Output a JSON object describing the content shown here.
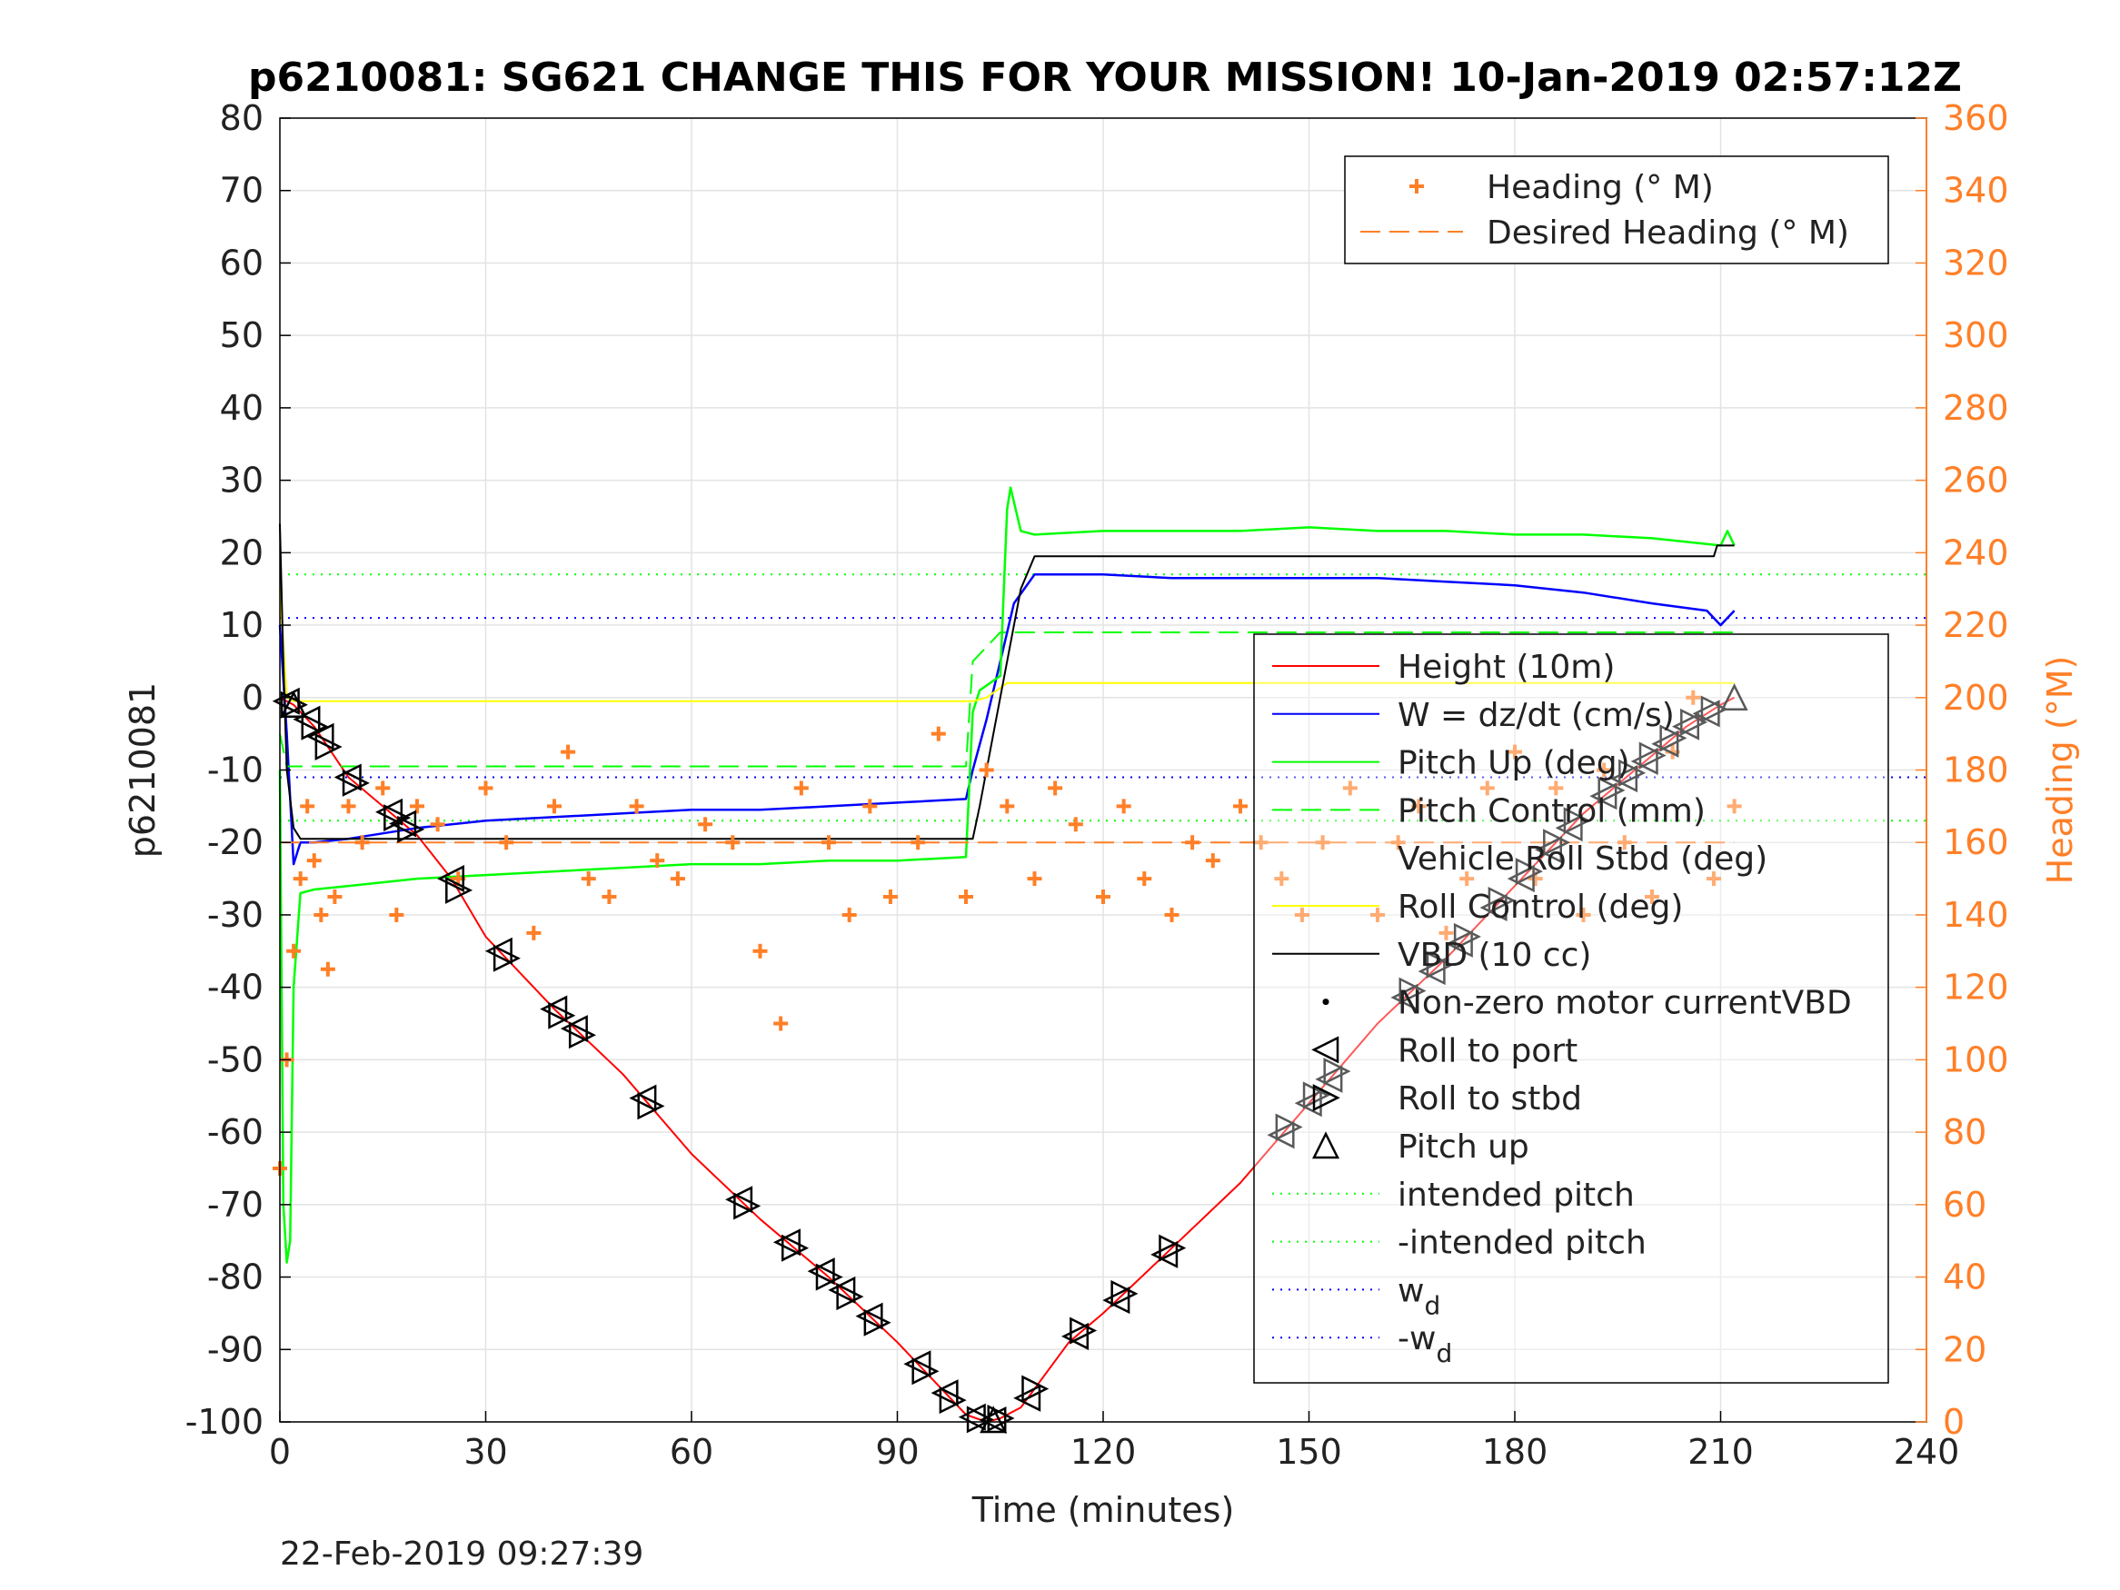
{
  "chart_data": {
    "type": "line",
    "title": "p6210081: SG621 CHANGE THIS FOR YOUR MISSION! 10-Jan-2019 02:57:12Z",
    "xlabel": "Time (minutes)",
    "ylabel_left": "p6210081",
    "ylabel_right": "Heading (°M)",
    "footer": "22-Feb-2019 09:27:39",
    "xlim": [
      0,
      240
    ],
    "ylim_left": [
      -100,
      80
    ],
    "ylim_right": [
      0,
      360
    ],
    "grid": true,
    "x_ticks": [
      "0",
      "30",
      "60",
      "90",
      "120",
      "150",
      "180",
      "210",
      "240"
    ],
    "y_ticks_left": [
      "80",
      "70",
      "60",
      "50",
      "40",
      "30",
      "20",
      "10",
      "0",
      "-10",
      "-20",
      "-30",
      "-40",
      "-50",
      "-60",
      "-70",
      "-80",
      "-90",
      "-100"
    ],
    "y_ticks_right": [
      "360",
      "340",
      "320",
      "300",
      "280",
      "260",
      "240",
      "220",
      "200",
      "180",
      "160",
      "140",
      "120",
      "100",
      "80",
      "60",
      "40",
      "20",
      "0"
    ],
    "colors": {
      "height": "#ff0000",
      "w": "#0000ff",
      "pitch": "#00ff00",
      "roll": "#ffff00",
      "vbd": "#000000",
      "heading": "#ff7f27",
      "axis_right": "#ff7f27"
    },
    "legend_top": {
      "placement": "top-right",
      "entries": [
        "Heading (° M)",
        "Desired Heading (° M)"
      ]
    },
    "legend_main": {
      "placement": "right",
      "entries": [
        "Height (10m)",
        "W = dz/dt (cm/s)",
        "Pitch Up (deg)",
        "Pitch Control (mm)",
        "Vehicle Roll Stbd (deg)",
        "Roll Control (deg)",
        "VBD (10 cc)",
        "Non-zero motor currentVBD",
        "Roll to port",
        "Roll to stbd",
        "Pitch up",
        "intended pitch",
        "-intended pitch",
        "w",
        "-w"
      ],
      "subscript": "d"
    },
    "series": [
      {
        "name": "Height (10m)",
        "axis": "left",
        "x": [
          0,
          2,
          5,
          10,
          15,
          20,
          25,
          30,
          40,
          50,
          60,
          70,
          80,
          90,
          95,
          100,
          103,
          105,
          108,
          115,
          120,
          130,
          140,
          150,
          160,
          170,
          180,
          190,
          200,
          205,
          210,
          212
        ],
        "y": [
          0,
          -1,
          -4,
          -11,
          -15,
          -19,
          -25,
          -33,
          -43,
          -52,
          -63,
          -72,
          -80,
          -89,
          -94,
          -99,
          -100,
          -99.5,
          -98,
          -89,
          -85,
          -76,
          -67,
          -56,
          -45,
          -36,
          -26,
          -16,
          -8,
          -4,
          -1,
          0
        ]
      },
      {
        "name": "W = dz/dt (cm/s)",
        "axis": "left",
        "x": [
          0,
          1,
          2,
          3,
          5,
          10,
          20,
          30,
          40,
          50,
          60,
          70,
          80,
          90,
          100,
          101,
          103,
          105,
          107,
          110,
          120,
          130,
          140,
          150,
          160,
          170,
          180,
          190,
          200,
          208,
          210,
          211,
          212
        ],
        "y": [
          10,
          -5,
          -23,
          -20,
          -20,
          -19.5,
          -18,
          -17,
          -16.5,
          -16,
          -15.5,
          -15.5,
          -15,
          -14.5,
          -14,
          -10,
          -3,
          5,
          13,
          17,
          17,
          16.5,
          16.5,
          16.5,
          16.5,
          16,
          15.5,
          14.5,
          13,
          12,
          10,
          11,
          12
        ]
      },
      {
        "name": "Pitch Up (deg)",
        "axis": "left",
        "x": [
          0,
          0.5,
          1,
          1.5,
          2,
          3,
          5,
          10,
          20,
          30,
          40,
          50,
          60,
          70,
          80,
          90,
          100,
          101,
          102,
          105,
          106,
          106.5,
          107,
          108,
          110,
          120,
          130,
          140,
          150,
          160,
          170,
          180,
          190,
          200,
          205,
          210,
          211,
          212
        ],
        "y": [
          -10,
          -70,
          -78,
          -75,
          -40,
          -27,
          -26.5,
          -26,
          -25,
          -24.5,
          -24,
          -23.5,
          -23,
          -23,
          -22.5,
          -22.5,
          -22,
          -2,
          1,
          3,
          26,
          29,
          27,
          23,
          22.5,
          23,
          23,
          23,
          23.5,
          23,
          23,
          22.5,
          22.5,
          22,
          21.5,
          21,
          23,
          21
        ]
      },
      {
        "name": "Pitch Control (mm)",
        "axis": "left",
        "x": [
          0,
          1,
          2,
          10,
          20,
          50,
          80,
          90,
          100,
          101,
          105,
          108,
          110,
          150,
          200,
          212
        ],
        "y": [
          -5,
          -9.5,
          -9.5,
          -9.5,
          -9.5,
          -9.5,
          -9.5,
          -9.5,
          -9.5,
          5,
          9,
          9,
          9,
          9,
          9,
          9
        ]
      },
      {
        "name": "Roll Control (deg)",
        "axis": "left",
        "x": [
          0,
          1,
          2,
          5,
          10,
          20,
          40,
          60,
          80,
          95,
          100,
          101,
          103,
          106,
          110,
          130,
          150,
          170,
          190,
          210,
          212
        ],
        "y": [
          15,
          0,
          -0.5,
          -0.5,
          -0.5,
          -0.5,
          -0.5,
          -0.5,
          -0.5,
          -0.5,
          -0.5,
          -0.5,
          0,
          2,
          2,
          2,
          2,
          2,
          2,
          2,
          2
        ]
      },
      {
        "name": "VBD (10 cc)",
        "axis": "left",
        "x": [
          0,
          0.5,
          1,
          2,
          3,
          5,
          10,
          50,
          100,
          101,
          102,
          104,
          106,
          108,
          110,
          150,
          200,
          209,
          209.5,
          212
        ],
        "y": [
          24,
          5,
          -10,
          -18,
          -19.5,
          -19.5,
          -19.5,
          -19.5,
          -19.5,
          -19.5,
          -15,
          -5,
          5,
          15,
          19.5,
          19.5,
          19.5,
          19.5,
          21,
          21
        ]
      },
      {
        "name": "Heading (° M)",
        "axis": "right",
        "x": [
          0,
          1,
          2,
          3,
          4,
          5,
          6,
          7,
          8,
          10,
          12,
          15,
          17,
          20,
          23,
          26,
          30,
          33,
          37,
          40,
          42,
          45,
          48,
          52,
          55,
          58,
          62,
          66,
          70,
          73,
          76,
          80,
          83,
          86,
          89,
          93,
          96,
          100,
          103,
          106,
          110,
          113,
          116,
          120,
          123,
          126,
          130,
          133,
          136,
          140,
          143,
          146,
          149,
          152,
          156,
          160,
          163,
          166,
          170,
          173,
          176,
          180,
          183,
          186,
          190,
          193,
          196,
          200,
          203,
          206,
          209,
          212
        ],
        "y": [
          70,
          100,
          130,
          150,
          170,
          155,
          140,
          125,
          145,
          170,
          160,
          175,
          140,
          170,
          165,
          150,
          175,
          160,
          135,
          170,
          185,
          150,
          145,
          170,
          155,
          150,
          165,
          160,
          130,
          110,
          175,
          160,
          140,
          170,
          145,
          160,
          190,
          145,
          180,
          170,
          150,
          175,
          165,
          145,
          170,
          150,
          140,
          160,
          155,
          170,
          160,
          150,
          140,
          160,
          175,
          140,
          160,
          170,
          135,
          150,
          175,
          185,
          150,
          175,
          140,
          180,
          160,
          145,
          185,
          200,
          150,
          170
        ]
      },
      {
        "name": "Desired Heading (° M)",
        "axis": "right",
        "x": [
          0,
          212
        ],
        "y": [
          160,
          160
        ]
      }
    ],
    "reference_lines": [
      {
        "name": "intended pitch",
        "axis": "left",
        "y": 17
      },
      {
        "name": "-intended pitch",
        "axis": "left",
        "y": -17
      },
      {
        "name": "w",
        "axis": "left",
        "y": 11
      },
      {
        "name": "-w",
        "axis": "left",
        "y": -11
      }
    ],
    "markers": {
      "roll_to_port": [
        1,
        4,
        6,
        10,
        16,
        18,
        25,
        32,
        40,
        43,
        53,
        67,
        74,
        79,
        82,
        86,
        93,
        97,
        101,
        104,
        109,
        116,
        122,
        129,
        146,
        150,
        153,
        164,
        168,
        172,
        177,
        181,
        185,
        188,
        193,
        196,
        199,
        202,
        205,
        208
      ],
      "roll_to_stbd": [
        2,
        5,
        7,
        11,
        17,
        19,
        26,
        33,
        41,
        44,
        54,
        68,
        75,
        80,
        83,
        87,
        94,
        98,
        102,
        105,
        110,
        117,
        123,
        130,
        147,
        151,
        154,
        165,
        169,
        173,
        178,
        182,
        186,
        189,
        194,
        197,
        200,
        203,
        206,
        209
      ],
      "pitch_up": [
        2,
        104,
        212
      ]
    }
  }
}
